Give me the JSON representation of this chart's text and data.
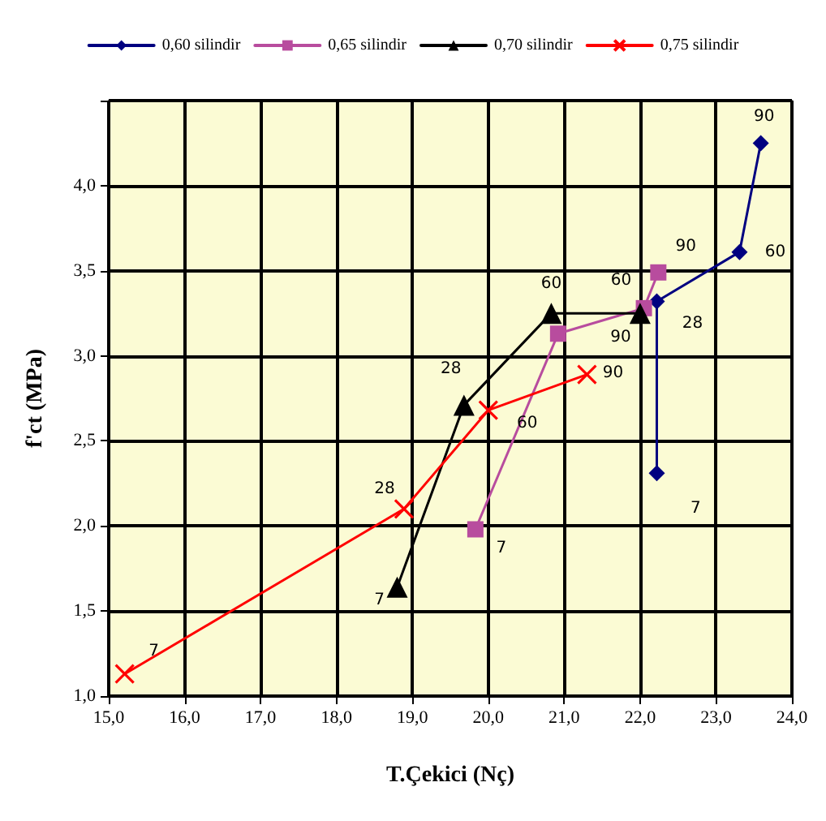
{
  "chart_data": {
    "type": "line",
    "xlabel": "T.Çekici (Nç)",
    "ylabel": "f'ct (MPa)",
    "xlim": [
      15,
      24
    ],
    "xticks": [
      {
        "value": 15,
        "label": "15,0"
      },
      {
        "value": 16,
        "label": "16,0"
      },
      {
        "value": 17,
        "label": "17,0"
      },
      {
        "value": 18,
        "label": "18,0"
      },
      {
        "value": 19,
        "label": "19,0"
      },
      {
        "value": 20,
        "label": "20,0"
      },
      {
        "value": 21,
        "label": "21,0"
      },
      {
        "value": 22,
        "label": "22,0"
      },
      {
        "value": 23,
        "label": "23,0"
      },
      {
        "value": 24,
        "label": "24,0"
      }
    ],
    "ylim": [
      1,
      4.5
    ],
    "yticks": [
      {
        "value": 1,
        "label": "1,0"
      },
      {
        "value": 1.5,
        "label": "1,5"
      },
      {
        "value": 2,
        "label": "2,0"
      },
      {
        "value": 2.5,
        "label": "2,5"
      },
      {
        "value": 3,
        "label": "3,0"
      },
      {
        "value": 3.5,
        "label": "3,5"
      },
      {
        "value": 4,
        "label": "4,0"
      },
      {
        "value": 4.5,
        "label": null
      }
    ],
    "grid": true,
    "legend": "top",
    "line_style": "solid",
    "series": [
      {
        "name": "0,60 silindir",
        "color": "#000080",
        "marker": "diamond",
        "x": [
          22.22,
          22.22,
          23.31,
          23.59
        ],
        "values": [
          2.31,
          3.32,
          3.61,
          4.25
        ]
      },
      {
        "name": "0,65 silindir",
        "color": "#b84c9e",
        "marker": "square",
        "x": [
          19.83,
          20.92,
          22.05,
          22.24
        ],
        "values": [
          1.98,
          3.13,
          3.28,
          3.49
        ]
      },
      {
        "name": "0,70 silindir",
        "color": "#000000",
        "marker": "triangle",
        "x": [
          18.8,
          19.68,
          20.83,
          22.0
        ],
        "values": [
          1.64,
          2.71,
          3.25,
          3.25
        ]
      },
      {
        "name": "0,75 silindir",
        "color": "#ff0000",
        "marker": "cross",
        "x": [
          15.21,
          18.89,
          20.0,
          21.3
        ],
        "values": [
          1.13,
          2.1,
          2.68,
          2.89
        ]
      }
    ],
    "annotations": [
      {
        "text": "7",
        "x": 22.22,
        "y": 2.31
      },
      {
        "text": "28",
        "x": 22.22,
        "y": 3.32
      },
      {
        "text": "60",
        "x": 23.31,
        "y": 3.61
      },
      {
        "text": "90",
        "x": 23.59,
        "y": 4.25
      },
      {
        "text": "7",
        "x": 19.83,
        "y": 1.98
      },
      {
        "text": "60",
        "x": 22.05,
        "y": 3.28
      },
      {
        "text": "90",
        "x": 22.24,
        "y": 3.49
      },
      {
        "text": "7",
        "x": 18.8,
        "y": 1.64
      },
      {
        "text": "28",
        "x": 19.68,
        "y": 2.71
      },
      {
        "text": "60",
        "x": 20.83,
        "y": 3.25
      },
      {
        "text": "90",
        "x": 22.0,
        "y": 3.25
      },
      {
        "text": "7",
        "x": 15.21,
        "y": 1.13
      },
      {
        "text": "28",
        "x": 18.89,
        "y": 2.1
      },
      {
        "text": "60",
        "x": 20.0,
        "y": 2.68
      },
      {
        "text": "90",
        "x": 21.3,
        "y": 2.89
      }
    ]
  }
}
